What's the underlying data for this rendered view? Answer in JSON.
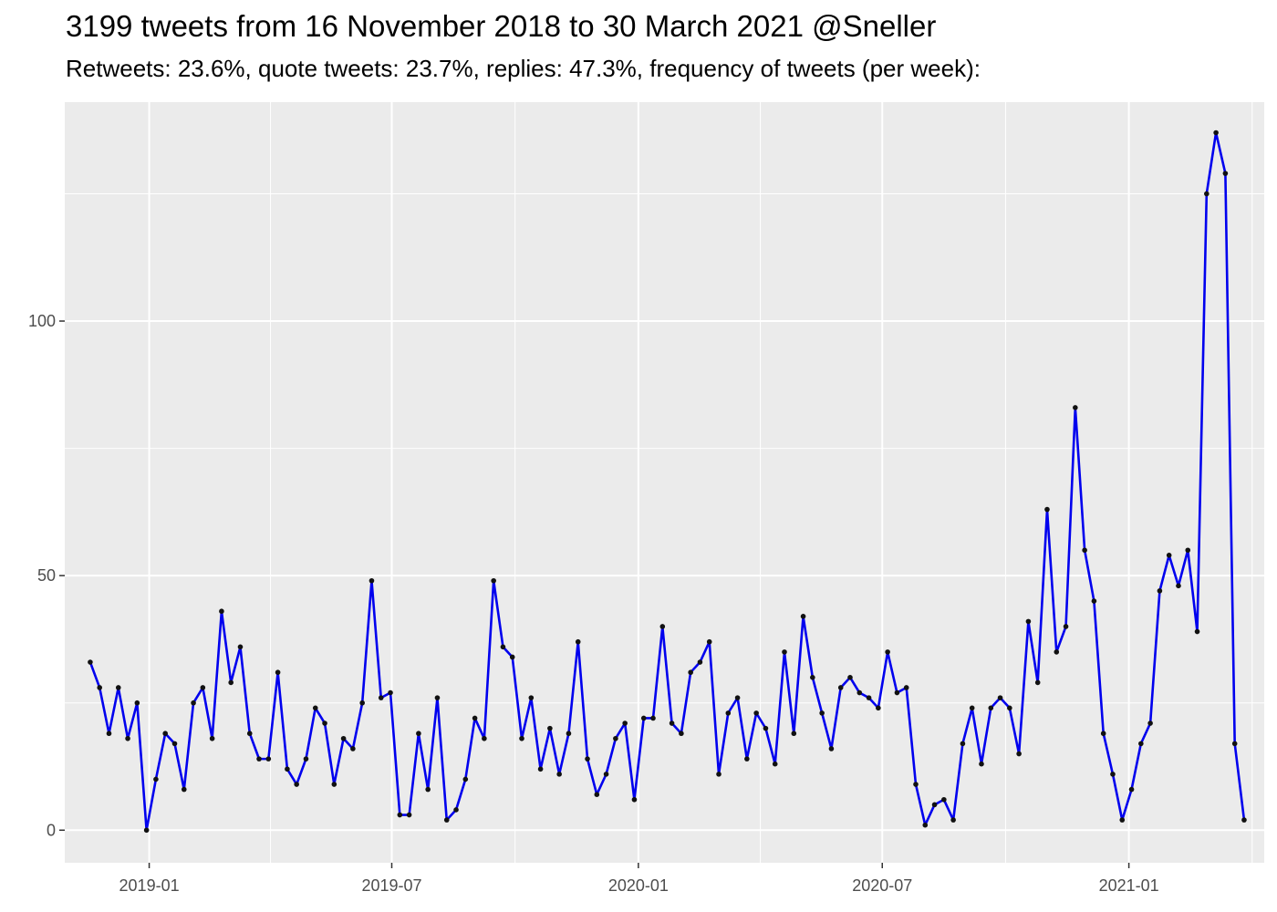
{
  "title": "3199 tweets from 16 November 2018 to 30 March 2021 @Sneller",
  "subtitle": "Retweets: 23.6%, quote tweets: 23.7%, replies: 47.3%, frequency of tweets (per week):",
  "chart_data": {
    "type": "line",
    "title": "3199 tweets from 16 November 2018 to 30 March 2021 @Sneller",
    "subtitle": "Retweets: 23.6%, quote tweets: 23.7%, replies: 47.3%, frequency of tweets (per week):",
    "xlabel": "",
    "ylabel": "",
    "x_start": "2018-11-18",
    "x_step_days": 7,
    "xlim": [
      "2018-10-30",
      "2021-04-12"
    ],
    "ylim": [
      -6.4,
      143
    ],
    "x_ticks": [
      "2019-01",
      "2019-07",
      "2020-01",
      "2020-07",
      "2021-01"
    ],
    "x_tick_dates": [
      "2019-01-01",
      "2019-07-01",
      "2020-01-01",
      "2020-07-01",
      "2021-01-01"
    ],
    "y_ticks": [
      0,
      50,
      100
    ],
    "y_tick_labels": [
      "0",
      "50",
      "100"
    ],
    "grid": true,
    "legend": "none",
    "colors": {
      "line": "#0000ee",
      "points": "#111111",
      "panel": "#ebebeb",
      "grid": "#ffffff",
      "tick_text": "#4d4d4d"
    },
    "series": [
      {
        "values": [
          33,
          28,
          19,
          28,
          18,
          25,
          0,
          10,
          19,
          17,
          8,
          25,
          28,
          18,
          43,
          29,
          36,
          19,
          14,
          14,
          31,
          12,
          9,
          14,
          24,
          21,
          9,
          18,
          16,
          25,
          49,
          26,
          27,
          3,
          3,
          19,
          8,
          26,
          2,
          4,
          10,
          22,
          18,
          49,
          36,
          34,
          18,
          26,
          12,
          20,
          11,
          19,
          37,
          14,
          7,
          11,
          18,
          21,
          6,
          22,
          22,
          40,
          21,
          19,
          31,
          33,
          37,
          11,
          23,
          26,
          14,
          23,
          20,
          13,
          35,
          19,
          42,
          30,
          23,
          16,
          28,
          30,
          27,
          26,
          24,
          35,
          27,
          28,
          9,
          1,
          5,
          6,
          2,
          17,
          24,
          13,
          24,
          26,
          24,
          15,
          41,
          29,
          63,
          35,
          40,
          83,
          55,
          45,
          19,
          11,
          2,
          8,
          17,
          21,
          47,
          54,
          48,
          55,
          39,
          125,
          137,
          129,
          17,
          2
        ]
      }
    ]
  }
}
